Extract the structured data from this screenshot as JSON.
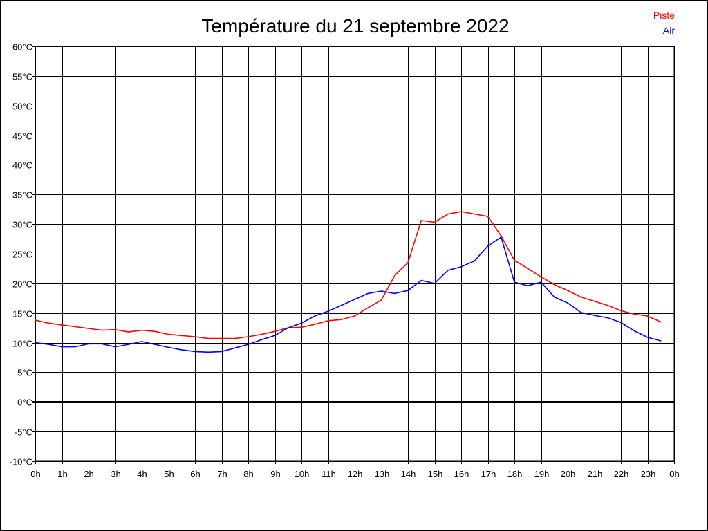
{
  "chart_data": {
    "type": "line",
    "title": "Température du 21 septembre 2022",
    "xlim": [
      0,
      24
    ],
    "ylim": [
      -10,
      60
    ],
    "x_ticks": [
      "0h",
      "1h",
      "2h",
      "3h",
      "4h",
      "5h",
      "6h",
      "7h",
      "8h",
      "9h",
      "10h",
      "11h",
      "12h",
      "13h",
      "14h",
      "15h",
      "16h",
      "17h",
      "18h",
      "19h",
      "20h",
      "21h",
      "22h",
      "23h",
      "0h"
    ],
    "y_ticks": [
      60,
      55,
      50,
      45,
      40,
      35,
      30,
      25,
      20,
      15,
      10,
      5,
      0,
      -5,
      -10
    ],
    "y_tick_labels": [
      "60°C",
      "55°C",
      "50°C",
      "45°C",
      "40°C",
      "35°C",
      "30°C",
      "25°C",
      "20°C",
      "15°C",
      "10°C",
      "5°C",
      "0°C",
      "-5°C",
      "-10°C"
    ],
    "grid": true,
    "legend_position": "top-right",
    "x": [
      0,
      0.5,
      1,
      1.5,
      2,
      2.5,
      3,
      3.5,
      4,
      4.5,
      5,
      5.5,
      6,
      6.5,
      7,
      7.5,
      8,
      8.5,
      9,
      9.5,
      10,
      10.5,
      11,
      11.5,
      12,
      12.5,
      13,
      13.5,
      14,
      14.5,
      15,
      15.5,
      16,
      16.5,
      17,
      17.5,
      18,
      18.5,
      19,
      19.5,
      20,
      20.5,
      21,
      21.5,
      22,
      22.5,
      23,
      23.5
    ],
    "series": [
      {
        "name": "Piste",
        "color": "#ff0000",
        "values": [
          13.8,
          13.3,
          13.0,
          12.7,
          12.4,
          12.1,
          12.2,
          11.8,
          12.1,
          11.9,
          11.4,
          11.2,
          11.0,
          10.7,
          10.7,
          10.7,
          11.0,
          11.4,
          11.9,
          12.5,
          12.6,
          13.1,
          13.7,
          13.9,
          14.5,
          15.9,
          17.2,
          21.3,
          23.5,
          30.6,
          30.3,
          31.7,
          32.1,
          31.7,
          31.3,
          28.0,
          23.9,
          22.5,
          21.1,
          19.8,
          18.8,
          17.7,
          17.0,
          16.3,
          15.4,
          14.8,
          14.5,
          13.5
        ]
      },
      {
        "name": "Air",
        "color": "#0000ff",
        "values": [
          10.0,
          9.7,
          9.3,
          9.3,
          9.8,
          9.8,
          9.3,
          9.7,
          10.2,
          9.7,
          9.2,
          8.8,
          8.5,
          8.4,
          8.5,
          9.1,
          9.7,
          10.5,
          11.2,
          12.5,
          13.3,
          14.5,
          15.3,
          16.3,
          17.3,
          18.3,
          18.7,
          18.3,
          18.8,
          20.5,
          20.0,
          22.2,
          22.8,
          23.8,
          26.3,
          27.8,
          20.2,
          19.6,
          20.2,
          17.7,
          16.7,
          15.1,
          14.6,
          14.2,
          13.4,
          12.0,
          10.9,
          10.3
        ]
      }
    ]
  }
}
